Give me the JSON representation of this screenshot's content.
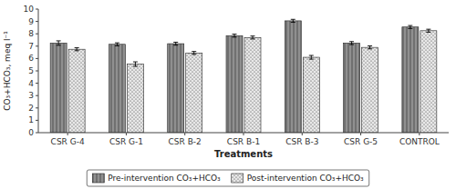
{
  "chart_data": {
    "type": "bar",
    "categories": [
      "CSR G-4",
      "CSR G-1",
      "CSR B-2",
      "CSR B-1",
      "CSR B-3",
      "CSR G-5",
      "CONTROL"
    ],
    "series": [
      {
        "name": "Pre-intervention CO₃+HCO₃",
        "color": "#909090",
        "values": [
          7.25,
          7.15,
          7.2,
          7.85,
          9.05,
          7.25,
          8.55
        ],
        "errors": [
          0.18,
          0.12,
          0.12,
          0.12,
          0.12,
          0.12,
          0.12
        ]
      },
      {
        "name": "Post-intervention CO₃+HCO₃",
        "color": "#e8e8e8",
        "values": [
          6.75,
          5.55,
          6.45,
          7.7,
          6.1,
          6.9,
          8.25
        ],
        "errors": [
          0.12,
          0.18,
          0.12,
          0.12,
          0.15,
          0.12,
          0.12
        ]
      }
    ],
    "xlabel": "Treatments",
    "ylabel": "CO₃+HCO₃, meq l⁻¹",
    "ylim": [
      0,
      10
    ],
    "yticks": [
      0,
      1,
      2,
      3,
      4,
      5,
      6,
      7,
      8,
      9,
      10
    ],
    "grid": false,
    "legend": "bottom"
  }
}
